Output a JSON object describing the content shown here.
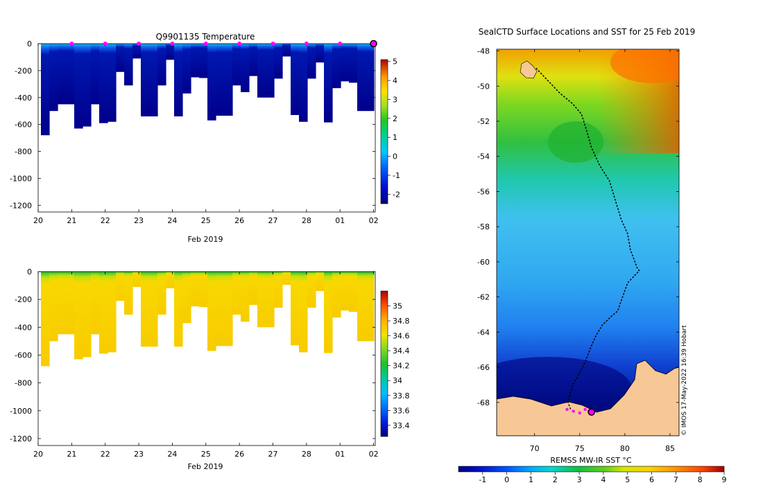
{
  "chart_data": [
    {
      "type": "heatmap",
      "title": "Q9901135  Temperature",
      "xlabel": "Feb 2019",
      "ylabel": "",
      "x_ticks": [
        "20",
        "21",
        "22",
        "23",
        "24",
        "25",
        "26",
        "27",
        "28",
        "01",
        "02"
      ],
      "y_ticks": [
        0,
        -200,
        -400,
        -600,
        -800,
        -1000,
        -1200
      ],
      "ylim": [
        -1250,
        0
      ],
      "xlim": [
        20,
        30.05
      ],
      "colorbar": {
        "ticks": [
          5,
          4,
          3,
          2,
          1,
          0,
          -1,
          -2
        ],
        "range": [
          -2.5,
          5.1
        ]
      },
      "profiles_max_depth_m": [
        680,
        500,
        450,
        450,
        630,
        615,
        450,
        590,
        580,
        210,
        310,
        110,
        540,
        540,
        310,
        120,
        540,
        370,
        250,
        255,
        570,
        535,
        535,
        310,
        360,
        240,
        400,
        400,
        260,
        95,
        530,
        580,
        260,
        140,
        585,
        330,
        280,
        290,
        500,
        500
      ],
      "surface_markers_day": [
        21,
        22,
        23,
        24,
        25,
        26,
        27,
        28,
        29
      ],
      "current_marker_day": 30.0
    },
    {
      "type": "heatmap",
      "title": "",
      "xlabel": "Feb 2019",
      "ylabel": "",
      "x_ticks": [
        "20",
        "21",
        "22",
        "23",
        "24",
        "25",
        "26",
        "27",
        "28",
        "01",
        "02"
      ],
      "y_ticks": [
        0,
        -200,
        -400,
        -600,
        -800,
        -1000,
        -1200
      ],
      "ylim": [
        -1250,
        0
      ],
      "xlim": [
        20,
        30.05
      ],
      "colorbar": {
        "ticks": [
          35,
          34.8,
          34.6,
          34.4,
          34.2,
          34,
          33.8,
          33.6,
          33.4
        ],
        "range": [
          33.25,
          35.2
        ]
      },
      "profiles_max_depth_m": [
        680,
        500,
        450,
        450,
        630,
        615,
        450,
        590,
        580,
        210,
        310,
        110,
        540,
        540,
        310,
        120,
        540,
        370,
        250,
        255,
        570,
        535,
        535,
        310,
        360,
        240,
        400,
        400,
        260,
        95,
        530,
        580,
        260,
        140,
        585,
        330,
        280,
        290,
        500,
        500
      ]
    },
    {
      "type": "scatter",
      "title": "SealCTD Surface Locations and SST for 25 Feb 2019",
      "xlabel": "",
      "ylabel": "",
      "x_ticks": [
        70,
        75,
        80,
        85
      ],
      "y_ticks": [
        -48,
        -50,
        -52,
        -54,
        -56,
        -58,
        -60,
        -62,
        -64,
        -66,
        -68
      ],
      "xlim": [
        65.8,
        86.0
      ],
      "ylim": [
        -69.9,
        -47.9
      ],
      "colorbar_label": "REMSS MW-IR SST °C",
      "colorbar_ticks": [
        -1,
        0,
        1,
        2,
        3,
        4,
        5,
        6,
        7,
        8,
        9
      ],
      "colorbar_range": [
        -2,
        9
      ],
      "track": [
        [
          70.2,
          -49.0
        ],
        [
          71.5,
          -49.7
        ],
        [
          72.8,
          -50.4
        ],
        [
          74.2,
          -51.0
        ],
        [
          75.2,
          -51.6
        ],
        [
          75.8,
          -52.6
        ],
        [
          76.3,
          -53.5
        ],
        [
          77.2,
          -54.5
        ],
        [
          78.3,
          -55.4
        ],
        [
          79.0,
          -56.6
        ],
        [
          79.6,
          -57.6
        ],
        [
          80.3,
          -58.4
        ],
        [
          80.6,
          -59.3
        ],
        [
          81.4,
          -60.4
        ],
        [
          81.6,
          -60.5
        ],
        [
          80.3,
          -61.2
        ],
        [
          79.6,
          -62.2
        ],
        [
          79.2,
          -62.8
        ],
        [
          78.5,
          -63.1
        ],
        [
          77.5,
          -63.6
        ],
        [
          76.8,
          -64.2
        ],
        [
          76.2,
          -64.9
        ],
        [
          75.6,
          -65.7
        ],
        [
          74.8,
          -66.5
        ],
        [
          74.2,
          -67.0
        ],
        [
          73.9,
          -67.6
        ],
        [
          73.7,
          -68.0
        ],
        [
          74.0,
          -68.4
        ]
      ],
      "daily_positions": [
        [
          73.6,
          -68.4
        ],
        [
          74.3,
          -68.5
        ],
        [
          75.0,
          -68.6
        ],
        [
          75.6,
          -68.4
        ],
        [
          76.0,
          -68.5
        ]
      ],
      "current_position": [
        76.3,
        -68.55
      ],
      "credit": "© IMOS 17-May-2022 16:39 Hobart"
    }
  ]
}
